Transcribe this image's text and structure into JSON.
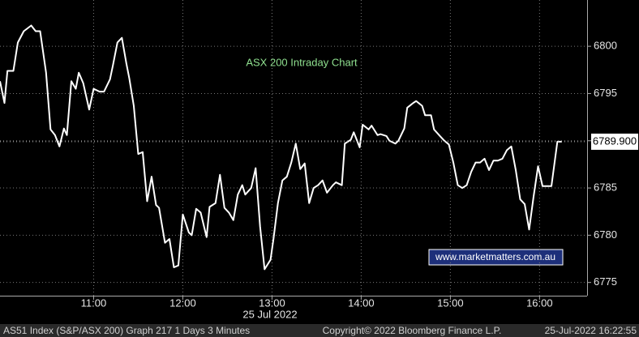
{
  "chart_data": {
    "type": "line",
    "title": "ASX 200 Intraday Chart",
    "subtitle": "25 Jul 2022",
    "color": "#ffffff",
    "grid": true,
    "xlim": [
      597,
      992
    ],
    "xticks": [
      {
        "value": 660,
        "label": "11:00"
      },
      {
        "value": 720,
        "label": "12:00"
      },
      {
        "value": 780,
        "label": "13:00"
      },
      {
        "value": 840,
        "label": "14:00"
      },
      {
        "value": 900,
        "label": "15:00"
      },
      {
        "value": 960,
        "label": "16:00"
      }
    ],
    "ylim": [
      6773.6,
      6804.9
    ],
    "yticks": [
      6775,
      6780,
      6785,
      6790,
      6795,
      6800
    ],
    "last_price": {
      "value": 6789.9,
      "label": "6789.900"
    },
    "watermark": "www.marketmatters.com.au",
    "footer": [
      "AS51 Index (S&P/ASX 200) Graph 217 1 Days 3 Minutes",
      "Copyright© 2022 Bloomberg Finance L.P.",
      "25-Jul-2022 16:22:55"
    ],
    "x": [
      597,
      600,
      602,
      606,
      609,
      613,
      618,
      621,
      624,
      628,
      631,
      634,
      637,
      640,
      642,
      645,
      648,
      650,
      653,
      657,
      660,
      664,
      667,
      671,
      673,
      676,
      679,
      682,
      684,
      687,
      690,
      693,
      696,
      699,
      702,
      704,
      708,
      711,
      714,
      717,
      720,
      724,
      726,
      729,
      732,
      736,
      738,
      742,
      745,
      748,
      751,
      754,
      757,
      760,
      762,
      766,
      769,
      772,
      775,
      779,
      781,
      784,
      787,
      790,
      793,
      796,
      799,
      802,
      805,
      808,
      811,
      814,
      817,
      821,
      823,
      827,
      829,
      833,
      835,
      839,
      841,
      845,
      847,
      851,
      853,
      857,
      859,
      863,
      865,
      869,
      871,
      875,
      877,
      881,
      883,
      887,
      889,
      893,
      896,
      899,
      902,
      905,
      908,
      911,
      914,
      917,
      920,
      923,
      926,
      929,
      932,
      935,
      938,
      941,
      944,
      947,
      950,
      953,
      956,
      959,
      962,
      965,
      968,
      972,
      975
    ],
    "values": [
      6796.3,
      6794.0,
      6797.4,
      6797.4,
      6800.4,
      6801.6,
      6802.2,
      6801.6,
      6801.6,
      6797.2,
      6791.2,
      6790.6,
      6789.4,
      6791.3,
      6790.6,
      6796.3,
      6795.5,
      6797.2,
      6796.1,
      6793.3,
      6795.5,
      6795.2,
      6795.2,
      6796.5,
      6798.0,
      6800.4,
      6800.9,
      6798.2,
      6796.6,
      6793.7,
      6788.6,
      6788.8,
      6783.6,
      6786.2,
      6783.2,
      6782.9,
      6779.2,
      6779.6,
      6776.6,
      6776.8,
      6782.2,
      6780.3,
      6780.0,
      6782.8,
      6782.4,
      6779.8,
      6783.0,
      6783.4,
      6786.4,
      6782.9,
      6782.4,
      6781.6,
      6784.3,
      6785.3,
      6784.3,
      6785.0,
      6787.1,
      6780.9,
      6776.4,
      6777.4,
      6779.6,
      6783.4,
      6785.8,
      6786.2,
      6787.7,
      6789.7,
      6787.0,
      6787.6,
      6783.4,
      6785.0,
      6785.3,
      6785.8,
      6784.5,
      6785.3,
      6785.6,
      6785.3,
      6789.7,
      6790.1,
      6790.9,
      6789.3,
      6791.7,
      6791.2,
      6791.6,
      6790.6,
      6790.7,
      6790.5,
      6790.0,
      6789.7,
      6790.0,
      6791.3,
      6793.5,
      6794.0,
      6794.2,
      6793.7,
      6792.7,
      6792.7,
      6791.2,
      6790.5,
      6790.0,
      6789.6,
      6787.7,
      6785.3,
      6785.0,
      6785.3,
      6786.7,
      6787.7,
      6787.7,
      6788.1,
      6786.9,
      6787.9,
      6787.9,
      6788.1,
      6789.0,
      6789.4,
      6786.9,
      6783.8,
      6783.3,
      6780.6,
      6784.1,
      6787.3,
      6785.2,
      6785.2,
      6785.2,
      6789.9,
      6789.9
    ]
  }
}
